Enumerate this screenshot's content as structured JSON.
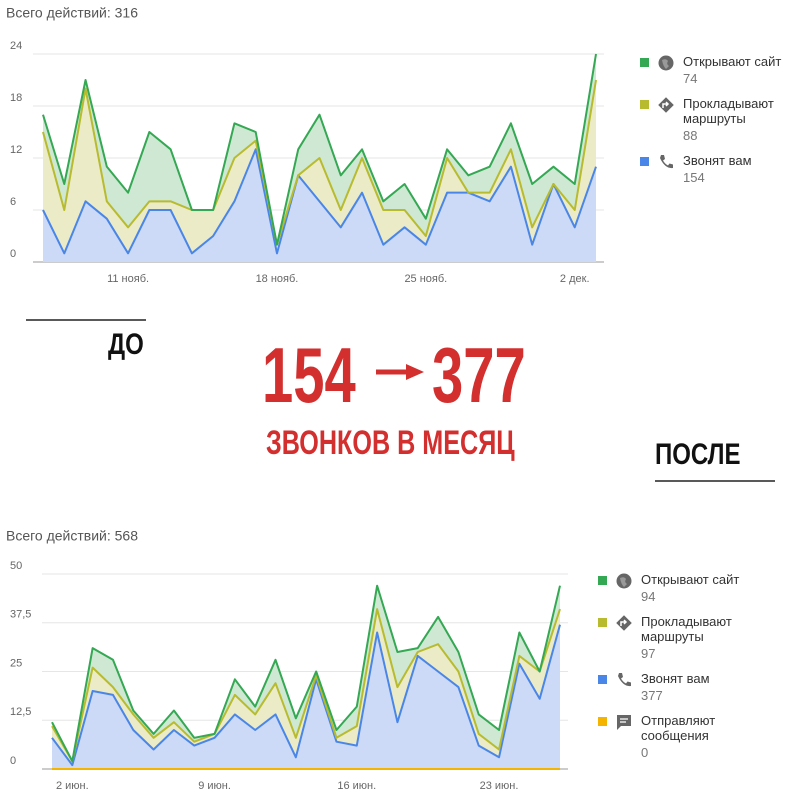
{
  "chart_data": [
    {
      "type": "stacked-area",
      "title": "Всего действий: 316",
      "categories": [
        null,
        null,
        null,
        null,
        "11 нояб.",
        null,
        null,
        null,
        null,
        null,
        null,
        "18 нояб.",
        null,
        null,
        null,
        null,
        null,
        null,
        "25 нояб.",
        null,
        null,
        null,
        null,
        null,
        null,
        "2 дек.",
        null
      ],
      "ylim": [
        0,
        24
      ],
      "yticks": [
        0,
        6,
        12,
        18,
        24
      ],
      "grid": true,
      "legend": "right",
      "series": [
        {
          "name": "Открывают сайт",
          "total": 74,
          "color": "#34a853",
          "fill": "#cfe8d3",
          "values": [
            2,
            3,
            1,
            4,
            4,
            8,
            6,
            0,
            0,
            4,
            1,
            0,
            3,
            5,
            4,
            1,
            1,
            3,
            2,
            1,
            2,
            3,
            3,
            5,
            2,
            3,
            3
          ]
        },
        {
          "name": "Прокладывают маршруты",
          "total": 88,
          "color": "#b8bb2e",
          "fill": "#ecebc7",
          "values": [
            9,
            5,
            13,
            2,
            3,
            1,
            1,
            5,
            3,
            5,
            1,
            1,
            0,
            5,
            2,
            4,
            4,
            2,
            1,
            4,
            0,
            1,
            2,
            2,
            0,
            2,
            10
          ]
        },
        {
          "name": "Звонят вам",
          "total": 154,
          "color": "#4a86e8",
          "fill": "#ccdaf7",
          "values": [
            6,
            1,
            7,
            5,
            1,
            6,
            6,
            1,
            3,
            7,
            13,
            1,
            10,
            7,
            4,
            8,
            2,
            4,
            2,
            8,
            8,
            7,
            11,
            2,
            9,
            4,
            11
          ]
        }
      ]
    },
    {
      "type": "stacked-area",
      "title": "Всего действий: 568",
      "categories": [
        null,
        "2 июн.",
        null,
        null,
        null,
        null,
        null,
        null,
        "9 июн.",
        null,
        null,
        null,
        null,
        null,
        null,
        "16 июн.",
        null,
        null,
        null,
        null,
        null,
        null,
        "23 июн.",
        null,
        null,
        null
      ],
      "ylim": [
        0,
        50
      ],
      "yticks": [
        0,
        {
          "value": 12.5,
          "label": "12,5"
        },
        25,
        {
          "value": 37.5,
          "label": "37,5"
        },
        50
      ],
      "grid": true,
      "legend": "right",
      "series": [
        {
          "name": "Открывают сайт",
          "total": 94,
          "color": "#34a853",
          "fill": "#cfe8d3",
          "values": [
            1,
            0,
            5,
            7,
            1,
            1,
            3,
            1,
            0,
            4,
            2,
            6,
            5,
            1,
            2,
            5,
            6,
            9,
            1,
            7,
            5,
            5,
            5,
            6,
            0,
            6
          ]
        },
        {
          "name": "Прокладывают маршруты",
          "total": 97,
          "color": "#b8bb2e",
          "fill": "#ecebc7",
          "values": [
            3,
            1,
            6,
            2,
            4,
            3,
            2,
            1,
            1,
            5,
            4,
            8,
            5,
            1,
            1,
            5,
            6,
            9,
            1,
            7,
            4,
            3,
            2,
            2,
            7,
            4
          ]
        },
        {
          "name": "Звонят вам",
          "total": 377,
          "color": "#4a86e8",
          "fill": "#ccdaf7",
          "values": [
            8,
            1,
            20,
            19,
            10,
            5,
            10,
            6,
            8,
            14,
            10,
            14,
            3,
            23,
            7,
            6,
            35,
            12,
            29,
            25,
            21,
            6,
            3,
            27,
            18,
            37
          ]
        },
        {
          "name": "Отправляют сообщения",
          "total": 0,
          "color": "#f4b400",
          "fill": "#fdebb5",
          "values": [
            0,
            0,
            0,
            0,
            0,
            0,
            0,
            0,
            0,
            0,
            0,
            0,
            0,
            0,
            0,
            0,
            0,
            0,
            0,
            0,
            0,
            0,
            0,
            0,
            0,
            0
          ]
        }
      ]
    }
  ],
  "infographic": {
    "before_label": "ДО",
    "after_label": "ПОСЛЕ",
    "from": 154,
    "to": 377,
    "caption": "ЗВОНКОВ В МЕСЯЦ"
  }
}
